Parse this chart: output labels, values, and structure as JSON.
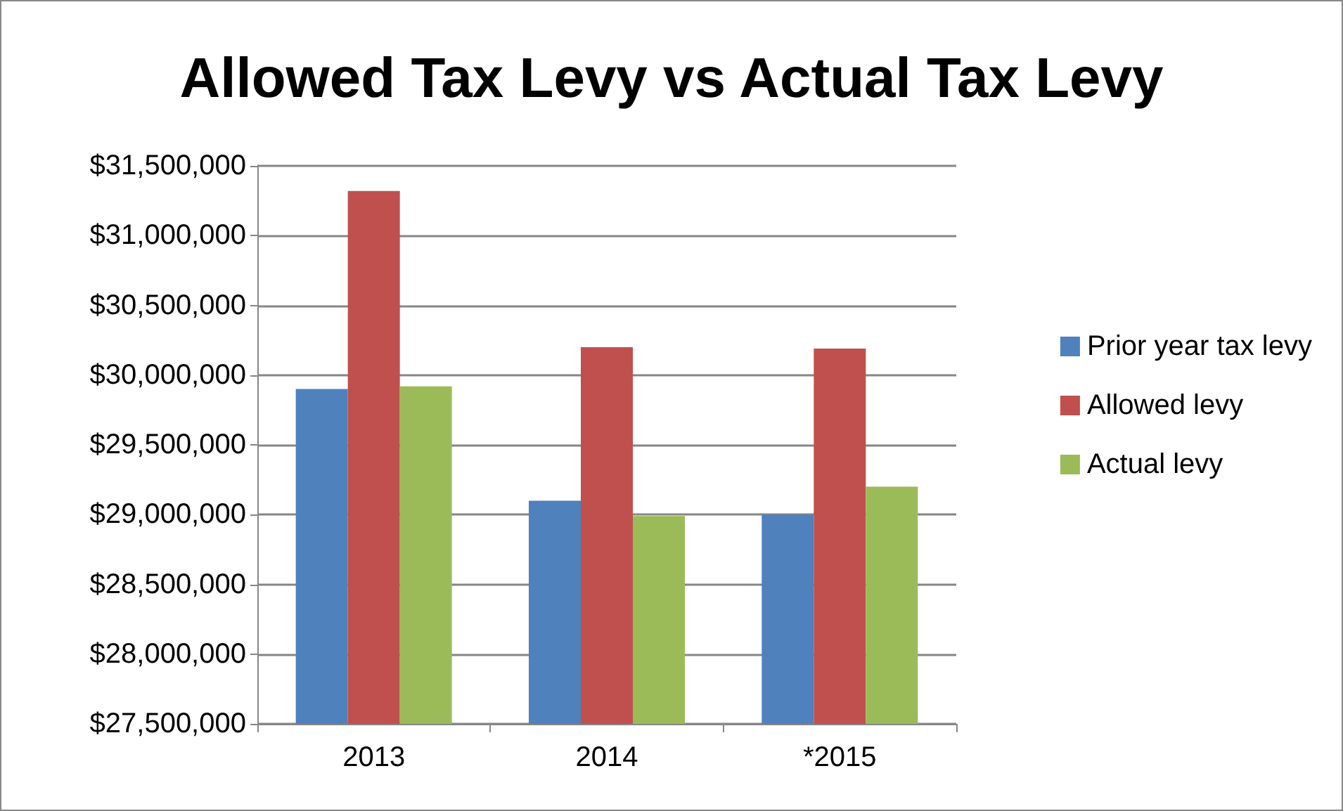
{
  "chart_data": {
    "type": "bar",
    "title": "Allowed Tax Levy vs Actual Tax Levy",
    "categories": [
      "2013",
      "2014",
      "*2015"
    ],
    "series": [
      {
        "name": "Prior year tax levy",
        "color": "#4f81bd",
        "values": [
          29900000,
          29100000,
          29000000
        ]
      },
      {
        "name": "Allowed levy",
        "color": "#c0504d",
        "values": [
          31320000,
          30200000,
          30190000
        ]
      },
      {
        "name": "Actual levy",
        "color": "#9bbb59",
        "values": [
          29920000,
          28990000,
          29200000
        ]
      }
    ],
    "ylim": [
      27500000,
      31500000
    ],
    "yticks": [
      {
        "value": 27500000,
        "label": "$27,500,000"
      },
      {
        "value": 28000000,
        "label": "$28,000,000"
      },
      {
        "value": 28500000,
        "label": "$28,500,000"
      },
      {
        "value": 29000000,
        "label": "$29,000,000"
      },
      {
        "value": 29500000,
        "label": "$29,500,000"
      },
      {
        "value": 30000000,
        "label": "$30,000,000"
      },
      {
        "value": 30500000,
        "label": "$30,500,000"
      },
      {
        "value": 31000000,
        "label": "$31,000,000"
      },
      {
        "value": 31500000,
        "label": "$31,500,000"
      }
    ],
    "grid": "y",
    "legend": "right"
  }
}
